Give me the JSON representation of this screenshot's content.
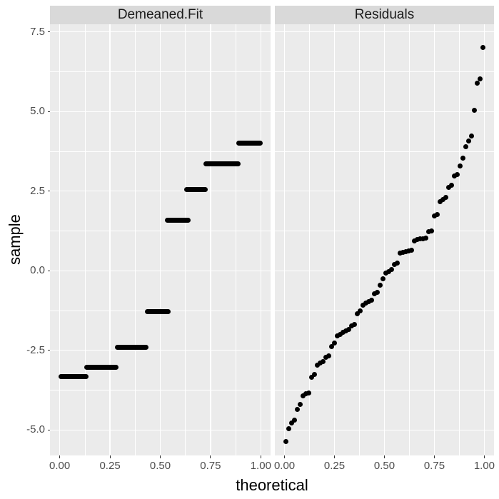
{
  "figure": {
    "background": "#ffffff",
    "panel_bg": "#ebebeb",
    "strip_bg": "#d9d9d9",
    "grid_color": "#ffffff",
    "point_color": "#000000",
    "tick_mark_color": "#333333",
    "axis_text_color": "#4d4d4d",
    "title_color": "#000000"
  },
  "chart_data": {
    "type": "scatter",
    "subtype": "qq-plot-faceted",
    "xlabel": "theoretical",
    "ylabel": "sample",
    "legend": "none",
    "grid": "on",
    "x_axis": {
      "lim": [
        -0.0485,
        1.0485
      ],
      "tick_values": [
        0.0,
        0.25,
        0.5,
        0.75,
        1.0
      ],
      "tick_labels": [
        "0.00",
        "0.25",
        "0.50",
        "0.75",
        "1.00"
      ],
      "minor_values": [
        0.125,
        0.375,
        0.625,
        0.875
      ]
    },
    "y_axis": {
      "lim": [
        -5.8,
        7.74
      ],
      "tick_values": [
        7.5,
        5.0,
        2.5,
        0.0,
        -2.5,
        -5.0
      ],
      "tick_labels": [
        "7.5",
        "5.0",
        "2.5",
        "0.0",
        "-2.5",
        "-5.0"
      ],
      "minor_values": [
        6.25,
        3.75,
        1.25,
        -1.25,
        -3.75
      ]
    },
    "facets": [
      {
        "label": "Demeaned.Fit",
        "geom": "segments",
        "segments": [
          {
            "y": -3.32,
            "x0": 0.005,
            "x1": 0.13
          },
          {
            "y": -3.03,
            "x0": 0.135,
            "x1": 0.28
          },
          {
            "y": -2.41,
            "x0": 0.287,
            "x1": 0.428
          },
          {
            "y": -1.28,
            "x0": 0.437,
            "x1": 0.54
          },
          {
            "y": 1.59,
            "x0": 0.534,
            "x1": 0.64
          },
          {
            "y": 2.56,
            "x0": 0.63,
            "x1": 0.725
          },
          {
            "y": 3.36,
            "x0": 0.727,
            "x1": 0.886
          },
          {
            "y": 4.01,
            "x0": 0.89,
            "x1": 0.996
          }
        ]
      },
      {
        "label": "Residuals",
        "geom": "points",
        "x": [
          0.0071,
          0.0214,
          0.0357,
          0.05,
          0.0643,
          0.0786,
          0.0929,
          0.1071,
          0.1214,
          0.1357,
          0.15,
          0.1643,
          0.1786,
          0.1929,
          0.2071,
          0.2214,
          0.2357,
          0.25,
          0.2643,
          0.2786,
          0.2929,
          0.3071,
          0.3214,
          0.3357,
          0.35,
          0.3643,
          0.3786,
          0.3929,
          0.4071,
          0.4214,
          0.4357,
          0.45,
          0.4643,
          0.4786,
          0.4929,
          0.5071,
          0.5214,
          0.5357,
          0.55,
          0.5643,
          0.5786,
          0.5929,
          0.6071,
          0.6214,
          0.6357,
          0.65,
          0.6643,
          0.6786,
          0.6929,
          0.7071,
          0.7214,
          0.7357,
          0.75,
          0.7643,
          0.7786,
          0.7929,
          0.8071,
          0.8214,
          0.8357,
          0.85,
          0.8643,
          0.8786,
          0.8929,
          0.9071,
          0.9214,
          0.9357,
          0.95,
          0.9643,
          0.9786,
          0.9929
        ],
        "y": [
          -5.37,
          -4.95,
          -4.78,
          -4.7,
          -4.35,
          -4.2,
          -3.93,
          -3.87,
          -3.83,
          -3.35,
          -3.25,
          -2.96,
          -2.9,
          -2.85,
          -2.72,
          -2.67,
          -2.39,
          -2.28,
          -2.04,
          -1.99,
          -1.93,
          -1.88,
          -1.84,
          -1.74,
          -1.68,
          -1.34,
          -1.25,
          -1.07,
          -1.01,
          -0.96,
          -0.92,
          -0.73,
          -0.68,
          -0.45,
          -0.26,
          -0.07,
          -0.03,
          0.04,
          0.2,
          0.25,
          0.55,
          0.58,
          0.6,
          0.62,
          0.64,
          0.94,
          0.98,
          1.0,
          1.01,
          1.03,
          1.23,
          1.26,
          1.73,
          1.76,
          2.18,
          2.24,
          2.3,
          2.62,
          2.68,
          2.97,
          3.03,
          3.28,
          3.53,
          3.9,
          4.08,
          4.24,
          5.03,
          5.9,
          6.02,
          7.02
        ]
      }
    ]
  }
}
